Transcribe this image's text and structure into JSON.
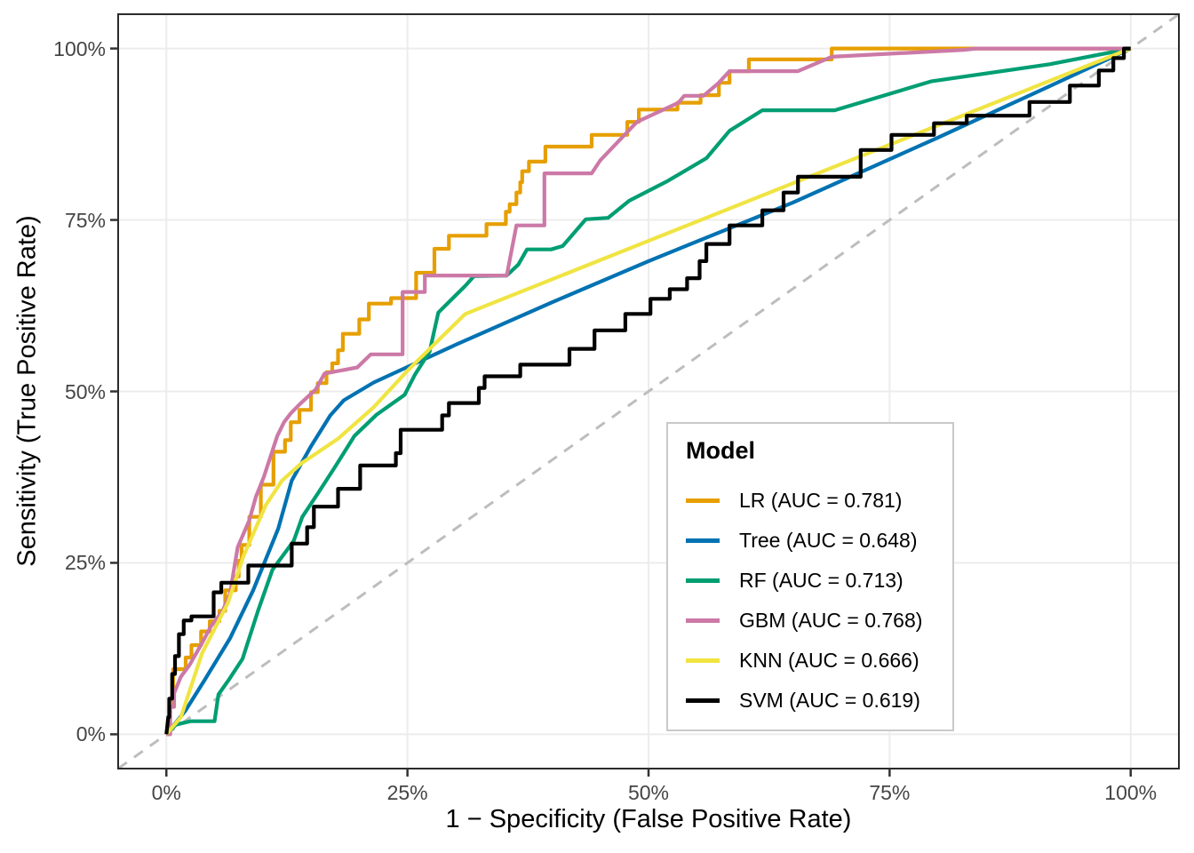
{
  "chart_data": {
    "type": "line",
    "subtype": "roc-curves",
    "title": "",
    "xlabel": "1 − Specificity (False Positive Rate)",
    "ylabel": "Sensitivity (True Positive Rate)",
    "x_ticks": {
      "values": [
        0,
        25,
        50,
        75,
        100
      ],
      "labels": [
        "0%",
        "25%",
        "50%",
        "75%",
        "100%"
      ]
    },
    "y_ticks": {
      "values": [
        0,
        25,
        50,
        75,
        100
      ],
      "labels": [
        "0%",
        "25%",
        "50%",
        "75%",
        "100%"
      ]
    },
    "xlim": [
      -5,
      105
    ],
    "ylim": [
      -5,
      105
    ],
    "grid": "major-only",
    "panel": {
      "background": "#ffffff",
      "border_color": "#2b2b2b",
      "grid_color": "#ececec"
    },
    "reference_line": {
      "meaning": "chance diagonal",
      "from": [
        0,
        0
      ],
      "to": [
        100,
        100
      ],
      "style": "dashed",
      "color": "#bdbdbd"
    },
    "legend": {
      "title": "Model",
      "position": "inside-bottom-right"
    },
    "series": [
      {
        "name": "LR",
        "auc": 0.781,
        "label": "LR (AUC = 0.781)",
        "color": "#E69F00",
        "points": [
          [
            0,
            0
          ],
          [
            0.3,
            0
          ],
          [
            0.3,
            4
          ],
          [
            0.7,
            4
          ],
          [
            0.7,
            9.5
          ],
          [
            2,
            9.5
          ],
          [
            2,
            11.2
          ],
          [
            2.6,
            11.2
          ],
          [
            2.6,
            13
          ],
          [
            3.6,
            13
          ],
          [
            3.6,
            15
          ],
          [
            4.5,
            15
          ],
          [
            4.5,
            16.5
          ],
          [
            5.5,
            16.5
          ],
          [
            5.5,
            18
          ],
          [
            6.1,
            18
          ],
          [
            6.1,
            21
          ],
          [
            7.2,
            21
          ],
          [
            7.2,
            23
          ],
          [
            7.5,
            23
          ],
          [
            7.5,
            25.3
          ],
          [
            7.8,
            25.3
          ],
          [
            7.8,
            27.6
          ],
          [
            8.6,
            27.6
          ],
          [
            8.6,
            31.7
          ],
          [
            9.8,
            31.7
          ],
          [
            9.8,
            36.4
          ],
          [
            11.1,
            36.4
          ],
          [
            11.1,
            41.2
          ],
          [
            12.3,
            41.2
          ],
          [
            12.3,
            42.9
          ],
          [
            12.9,
            42.9
          ],
          [
            12.9,
            45.5
          ],
          [
            13.8,
            45.5
          ],
          [
            13.8,
            47.3
          ],
          [
            15,
            47.3
          ],
          [
            15,
            49.9
          ],
          [
            15.7,
            49.9
          ],
          [
            15.7,
            51.2
          ],
          [
            16.6,
            51.2
          ],
          [
            16.6,
            52.8
          ],
          [
            17.2,
            52.8
          ],
          [
            17.2,
            54.1
          ],
          [
            17.8,
            54.1
          ],
          [
            17.8,
            56
          ],
          [
            18.3,
            56
          ],
          [
            18.3,
            58.4
          ],
          [
            20,
            58.4
          ],
          [
            20,
            60.5
          ],
          [
            21,
            60.5
          ],
          [
            21,
            62.8
          ],
          [
            23.3,
            62.8
          ],
          [
            23.3,
            63.6
          ],
          [
            25.9,
            63.6
          ],
          [
            25.9,
            67.3
          ],
          [
            27.8,
            67.3
          ],
          [
            27.8,
            70.8
          ],
          [
            29.3,
            70.8
          ],
          [
            29.3,
            72.7
          ],
          [
            33.2,
            72.7
          ],
          [
            33.2,
            74.4
          ],
          [
            35.2,
            74.4
          ],
          [
            35.2,
            76.2
          ],
          [
            35.6,
            76.2
          ],
          [
            35.6,
            77.3
          ],
          [
            36.3,
            77.3
          ],
          [
            36.3,
            79
          ],
          [
            36.7,
            79
          ],
          [
            36.7,
            80.5
          ],
          [
            36.9,
            80.5
          ],
          [
            36.9,
            82.1
          ],
          [
            37.6,
            82.1
          ],
          [
            37.6,
            83.5
          ],
          [
            39.3,
            83.5
          ],
          [
            39.3,
            85.7
          ],
          [
            44.1,
            85.7
          ],
          [
            44.1,
            87.4
          ],
          [
            47.8,
            87.4
          ],
          [
            47.8,
            89.3
          ],
          [
            49,
            89.3
          ],
          [
            49,
            91.1
          ],
          [
            53,
            91.1
          ],
          [
            53,
            92.1
          ],
          [
            55.4,
            92.1
          ],
          [
            55.4,
            93.2
          ],
          [
            57.3,
            93.2
          ],
          [
            57.3,
            95
          ],
          [
            58.4,
            95
          ],
          [
            58.4,
            96.7
          ],
          [
            60.4,
            96.7
          ],
          [
            60.4,
            98.4
          ],
          [
            69,
            98.4
          ],
          [
            69,
            100
          ],
          [
            100,
            100
          ]
        ]
      },
      {
        "name": "Tree",
        "auc": 0.648,
        "label": "Tree (AUC = 0.648)",
        "color": "#0072B2",
        "points": [
          [
            0,
            0
          ],
          [
            2,
            3.5
          ],
          [
            4,
            8
          ],
          [
            6.6,
            14
          ],
          [
            9,
            21
          ],
          [
            11.6,
            30
          ],
          [
            13,
            37
          ],
          [
            15,
            42
          ],
          [
            17,
            46.5
          ],
          [
            18.4,
            48.7
          ],
          [
            21.5,
            51.3
          ],
          [
            30,
            56.8
          ],
          [
            40,
            63
          ],
          [
            50,
            69
          ],
          [
            64.9,
            77.5
          ],
          [
            80,
            87
          ],
          [
            91.6,
            94.5
          ],
          [
            100,
            100
          ]
        ]
      },
      {
        "name": "RF",
        "auc": 0.713,
        "label": "RF (AUC = 0.713)",
        "color": "#009E73",
        "points": [
          [
            0,
            0
          ],
          [
            1,
            1.4
          ],
          [
            2.5,
            1.9
          ],
          [
            5,
            1.9
          ],
          [
            5.4,
            5.8
          ],
          [
            6.5,
            8
          ],
          [
            7.9,
            11
          ],
          [
            9.5,
            18
          ],
          [
            11,
            24
          ],
          [
            13.2,
            28.2
          ],
          [
            14.1,
            31.7
          ],
          [
            15.7,
            35.1
          ],
          [
            17.5,
            39
          ],
          [
            19.5,
            43.5
          ],
          [
            21.8,
            46.6
          ],
          [
            24.7,
            49.5
          ],
          [
            25.8,
            52.5
          ],
          [
            27.3,
            55.8
          ],
          [
            28.2,
            61.5
          ],
          [
            31,
            65.4
          ],
          [
            31.9,
            66.8
          ],
          [
            35.3,
            66.9
          ],
          [
            36.5,
            68.5
          ],
          [
            37.4,
            70.7
          ],
          [
            39.9,
            70.7
          ],
          [
            41.1,
            71.2
          ],
          [
            43.5,
            75.1
          ],
          [
            45.8,
            75.3
          ],
          [
            48,
            77.8
          ],
          [
            52,
            80.7
          ],
          [
            56,
            84
          ],
          [
            58.4,
            88
          ],
          [
            61.8,
            91
          ],
          [
            69.3,
            91
          ],
          [
            79.3,
            95.2
          ],
          [
            91.6,
            97.7
          ],
          [
            100,
            100
          ]
        ]
      },
      {
        "name": "GBM",
        "auc": 0.768,
        "label": "GBM (AUC = 0.768)",
        "color": "#CC79A7",
        "points": [
          [
            0,
            0
          ],
          [
            0.4,
            0
          ],
          [
            0.4,
            4
          ],
          [
            0.8,
            4
          ],
          [
            0.8,
            6
          ],
          [
            1.5,
            8.4
          ],
          [
            2.4,
            10.1
          ],
          [
            3.7,
            13.3
          ],
          [
            4.6,
            15.7
          ],
          [
            5.8,
            17.9
          ],
          [
            6.6,
            20.5
          ],
          [
            7,
            24
          ],
          [
            7.4,
            27.3
          ],
          [
            8.6,
            31.2
          ],
          [
            9.3,
            34.7
          ],
          [
            10.1,
            37.5
          ],
          [
            10.8,
            40.5
          ],
          [
            11.5,
            43.5
          ],
          [
            12.2,
            45.5
          ],
          [
            12.9,
            46.8
          ],
          [
            13.8,
            48.1
          ],
          [
            15.5,
            50.3
          ],
          [
            16.4,
            52.6
          ],
          [
            19.8,
            53.5
          ],
          [
            21.2,
            55.4
          ],
          [
            24.5,
            55.4
          ],
          [
            24.5,
            64.5
          ],
          [
            26.8,
            64.5
          ],
          [
            26.8,
            66.9
          ],
          [
            35.3,
            66.9
          ],
          [
            36.3,
            74.2
          ],
          [
            38.4,
            74.2
          ],
          [
            39.2,
            74.2
          ],
          [
            39.2,
            81.8
          ],
          [
            44.1,
            81.8
          ],
          [
            45,
            83.7
          ],
          [
            48.8,
            89.3
          ],
          [
            53.1,
            92.1
          ],
          [
            53.7,
            93.1
          ],
          [
            55.7,
            93.1
          ],
          [
            57.2,
            94.9
          ],
          [
            58.4,
            96.7
          ],
          [
            65.5,
            96.7
          ],
          [
            69,
            98.8
          ],
          [
            82.7,
            99.8
          ],
          [
            84,
            100
          ],
          [
            100,
            100
          ]
        ]
      },
      {
        "name": "KNN",
        "auc": 0.666,
        "label": "KNN (AUC = 0.666)",
        "color": "#F0E442",
        "points": [
          [
            0,
            0
          ],
          [
            1.5,
            2.5
          ],
          [
            3.7,
            11.8
          ],
          [
            6.4,
            19.2
          ],
          [
            8,
            26
          ],
          [
            10.3,
            33.4
          ],
          [
            12,
            37
          ],
          [
            14,
            39.5
          ],
          [
            17.8,
            43.1
          ],
          [
            21.5,
            47.7
          ],
          [
            25,
            53
          ],
          [
            28.6,
            58
          ],
          [
            31,
            61.3
          ],
          [
            100,
            100
          ]
        ]
      },
      {
        "name": "SVM",
        "auc": 0.619,
        "label": "SVM (AUC = 0.619)",
        "color": "#000000",
        "points": [
          [
            0,
            0
          ],
          [
            0.2,
            2.5
          ],
          [
            0.3,
            2.5
          ],
          [
            0.3,
            5.2
          ],
          [
            0.6,
            5.2
          ],
          [
            0.6,
            8.8
          ],
          [
            0.9,
            8.8
          ],
          [
            0.9,
            11.4
          ],
          [
            1.3,
            11.4
          ],
          [
            1.3,
            14.6
          ],
          [
            1.8,
            14.6
          ],
          [
            1.8,
            16.6
          ],
          [
            2.6,
            16.6
          ],
          [
            2.6,
            17.2
          ],
          [
            4.9,
            17.2
          ],
          [
            4.9,
            20.7
          ],
          [
            5.7,
            20.7
          ],
          [
            5.7,
            22.1
          ],
          [
            8.5,
            22.1
          ],
          [
            8.5,
            24.6
          ],
          [
            13,
            24.6
          ],
          [
            13,
            27.8
          ],
          [
            14.6,
            27.8
          ],
          [
            14.6,
            30.2
          ],
          [
            15.3,
            30.2
          ],
          [
            15.3,
            33.2
          ],
          [
            17.8,
            33.2
          ],
          [
            17.8,
            35.8
          ],
          [
            20.1,
            35.8
          ],
          [
            20.1,
            39.2
          ],
          [
            23.8,
            39.2
          ],
          [
            23.8,
            41
          ],
          [
            24.3,
            41
          ],
          [
            24.3,
            44.4
          ],
          [
            28.6,
            44.4
          ],
          [
            28.6,
            46.5
          ],
          [
            29.3,
            46.5
          ],
          [
            29.3,
            48.3
          ],
          [
            32.4,
            48.3
          ],
          [
            32.4,
            50.5
          ],
          [
            33,
            50.5
          ],
          [
            33,
            52.2
          ],
          [
            36.7,
            52.2
          ],
          [
            36.7,
            53.9
          ],
          [
            41.8,
            53.9
          ],
          [
            41.8,
            56.2
          ],
          [
            44.4,
            56.2
          ],
          [
            44.4,
            58.9
          ],
          [
            47.6,
            58.9
          ],
          [
            47.6,
            61.3
          ],
          [
            50.2,
            61.3
          ],
          [
            50.2,
            63.5
          ],
          [
            52.2,
            63.5
          ],
          [
            52.2,
            64.9
          ],
          [
            54,
            64.9
          ],
          [
            54,
            66.5
          ],
          [
            55.3,
            66.5
          ],
          [
            55.3,
            69
          ],
          [
            56,
            69
          ],
          [
            56,
            71.5
          ],
          [
            58.4,
            71.5
          ],
          [
            58.4,
            74.2
          ],
          [
            61.8,
            74.2
          ],
          [
            61.8,
            76.4
          ],
          [
            64,
            76.4
          ],
          [
            64,
            79
          ],
          [
            65.5,
            79
          ],
          [
            65.5,
            81.3
          ],
          [
            72,
            81.3
          ],
          [
            72,
            85.2
          ],
          [
            75.2,
            85.2
          ],
          [
            75.2,
            87.4
          ],
          [
            79.6,
            87.4
          ],
          [
            79.6,
            89.1
          ],
          [
            83,
            89.1
          ],
          [
            83,
            90.2
          ],
          [
            89.5,
            90.2
          ],
          [
            89.5,
            92.2
          ],
          [
            93.7,
            92.2
          ],
          [
            93.7,
            94.6
          ],
          [
            96.7,
            94.6
          ],
          [
            96.7,
            96.8
          ],
          [
            98.2,
            96.8
          ],
          [
            98.2,
            98.6
          ],
          [
            99.3,
            98.6
          ],
          [
            99.3,
            100
          ],
          [
            100,
            100
          ]
        ]
      }
    ]
  }
}
